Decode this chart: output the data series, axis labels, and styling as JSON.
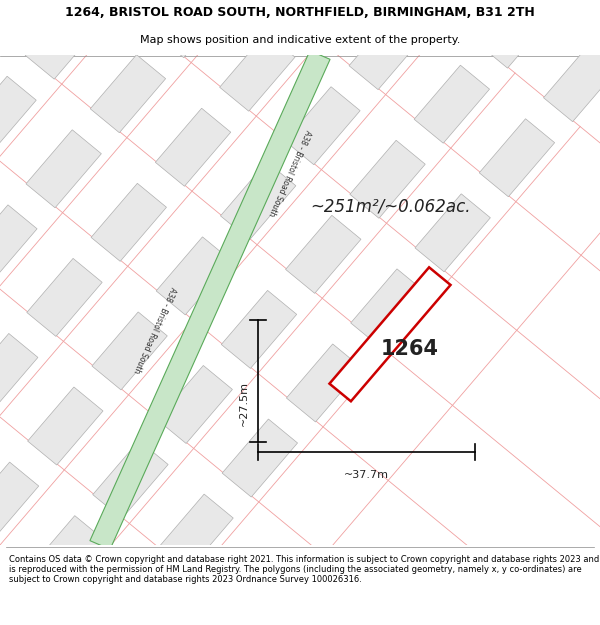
{
  "title_line1": "1264, BRISTOL ROAD SOUTH, NORTHFIELD, BIRMINGHAM, B31 2TH",
  "title_line2": "Map shows position and indicative extent of the property.",
  "area_text": "~251m²/~0.062ac.",
  "plot_number": "1264",
  "dim_width": "~37.7m",
  "dim_height": "~27.5m",
  "footer_text": "Contains OS data © Crown copyright and database right 2021. This information is subject to Crown copyright and database rights 2023 and is reproduced with the permission of HM Land Registry. The polygons (including the associated geometry, namely x, y co-ordinates) are subject to Crown copyright and database rights 2023 Ordnance Survey 100026316.",
  "map_bg": "#ffffff",
  "road_color_fill": "#c8e6c8",
  "road_color_edge": "#5aaa5a",
  "road_label": "A38 - Bristol Road South",
  "parcel_line_color": "#f0a0a0",
  "building_fill": "#e8e8e8",
  "building_edge": "#b0b0b0",
  "plot_edge": "#cc0000",
  "plot_fill": "#ffffff"
}
